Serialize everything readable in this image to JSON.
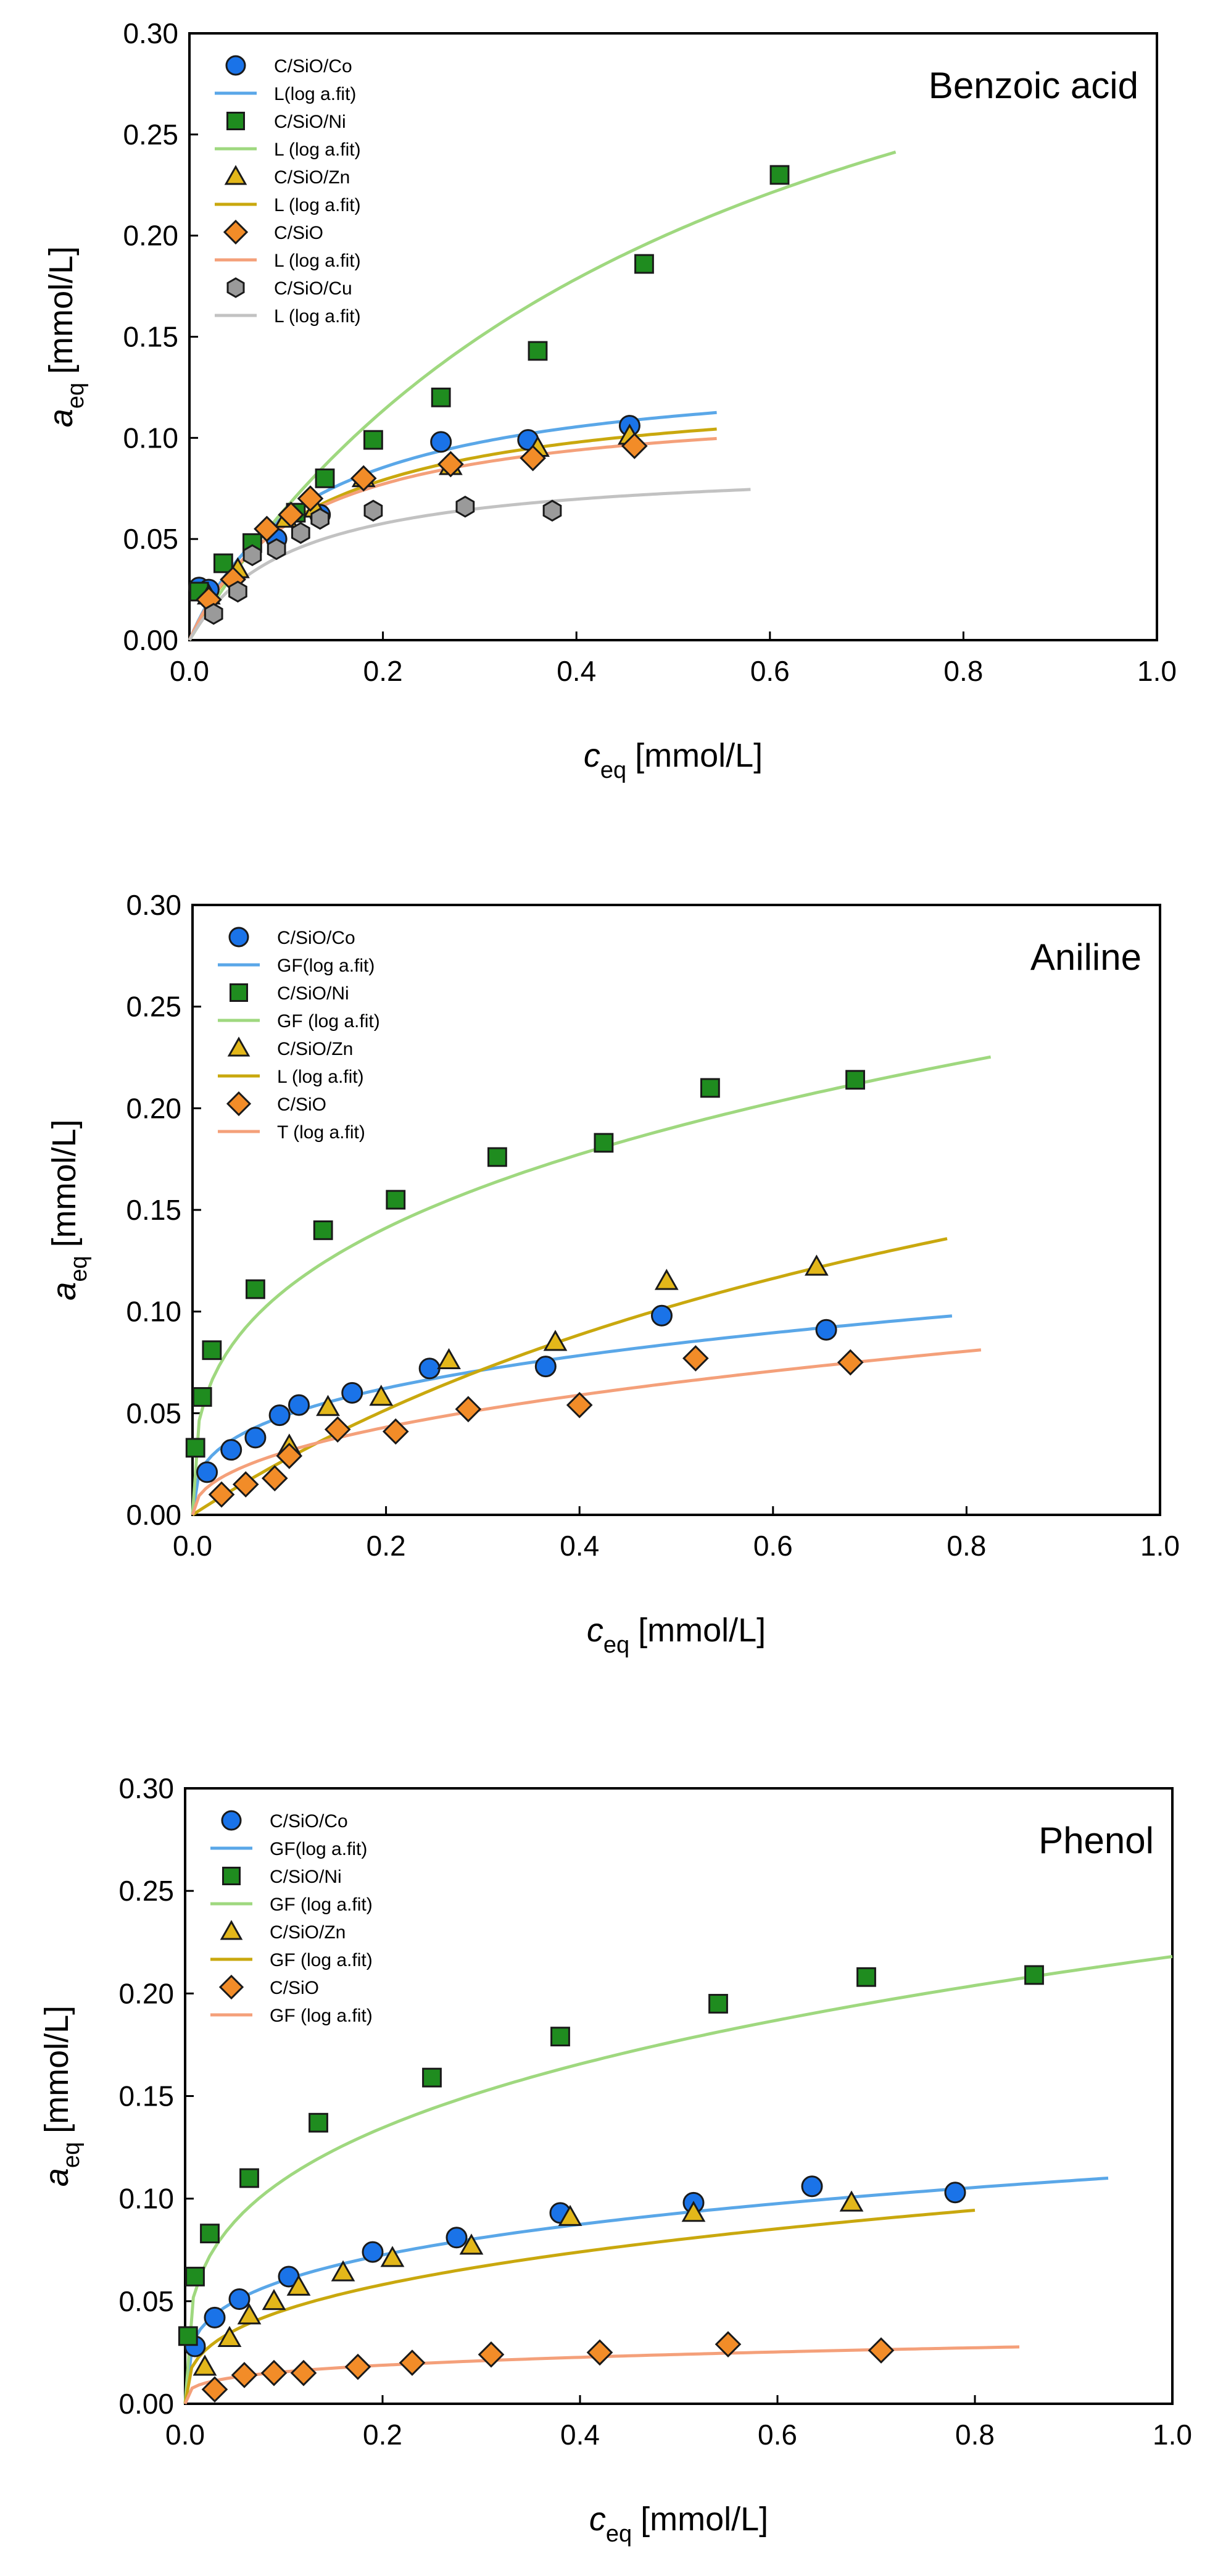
{
  "chart_data": [
    {
      "type": "scatter",
      "title": "Benzoic acid",
      "xlabel": {
        "main": "c",
        "sub": "eq",
        "units": "[mmol/L]"
      },
      "ylabel": {
        "main": "a",
        "sub": "eq",
        "units": "[mmol/L]"
      },
      "xlim": [
        0,
        1.0
      ],
      "ylim": [
        0,
        0.3
      ],
      "xticks": [
        "0.0",
        "0.2",
        "0.4",
        "0.6",
        "0.8",
        "1.0"
      ],
      "yticks": [
        "0.00",
        "0.05",
        "0.10",
        "0.15",
        "0.20",
        "0.25",
        "0.30"
      ],
      "grid": false,
      "legend_position": "top-left",
      "series": [
        {
          "name": "C/SiO/Co",
          "marker": "circle",
          "color": "#1a73e8",
          "x": [
            0.01,
            0.02,
            0.09,
            0.135,
            0.26,
            0.35,
            0.455
          ],
          "y": [
            0.026,
            0.025,
            0.05,
            0.062,
            0.098,
            0.099,
            0.106
          ]
        },
        {
          "name": "L(log a.fit)",
          "kind": "fit",
          "color": "#5aa7e8",
          "model": "langmuir",
          "qmax": 0.138,
          "K": 8.1,
          "xmax": 0.545
        },
        {
          "name": "C/SiO/Ni",
          "marker": "square",
          "color": "#1f8c1f",
          "x": [
            0.01,
            0.035,
            0.065,
            0.11,
            0.14,
            0.19,
            0.26,
            0.36,
            0.47,
            0.61
          ],
          "y": [
            0.024,
            0.038,
            0.048,
            0.063,
            0.08,
            0.099,
            0.12,
            0.143,
            0.186,
            0.23
          ]
        },
        {
          "name": "L (log a.fit)",
          "kind": "fit",
          "color": "#9fd87f",
          "model": "langmuir",
          "qmax": 0.42,
          "K": 1.85,
          "xmax": 0.73
        },
        {
          "name": "C/SiO/Zn",
          "marker": "triangle",
          "color": "#e3b71a",
          "x": [
            0.02,
            0.05,
            0.1,
            0.13,
            0.18,
            0.27,
            0.36,
            0.455
          ],
          "y": [
            0.022,
            0.035,
            0.06,
            0.065,
            0.08,
            0.086,
            0.095,
            0.101
          ]
        },
        {
          "name": "L (log a.fit)",
          "kind": "fit",
          "color": "#c9a80e",
          "model": "langmuir",
          "qmax": 0.128,
          "K": 8.1,
          "xmax": 0.545
        },
        {
          "name": "C/SiO",
          "marker": "diamond",
          "color": "#f28c28",
          "x": [
            0.02,
            0.045,
            0.08,
            0.105,
            0.125,
            0.18,
            0.27,
            0.355,
            0.46
          ],
          "y": [
            0.02,
            0.03,
            0.055,
            0.062,
            0.07,
            0.08,
            0.087,
            0.09,
            0.096
          ]
        },
        {
          "name": "L (log a.fit)",
          "kind": "fit",
          "color": "#f4a07a",
          "model": "langmuir",
          "qmax": 0.12,
          "K": 9.0,
          "xmax": 0.545
        },
        {
          "name": "C/SiO/Cu",
          "marker": "hexagon",
          "color": "#9a9a9a",
          "x": [
            0.025,
            0.05,
            0.065,
            0.09,
            0.115,
            0.135,
            0.19,
            0.285,
            0.375
          ],
          "y": [
            0.013,
            0.024,
            0.042,
            0.045,
            0.053,
            0.06,
            0.064,
            0.066,
            0.064
          ]
        },
        {
          "name": "L (log a.fit)",
          "kind": "fit",
          "color": "#c2c2c2",
          "model": "langmuir",
          "qmax": 0.088,
          "K": 9.5,
          "xmax": 0.58
        }
      ]
    },
    {
      "type": "scatter",
      "title": "Aniline",
      "xlabel": {
        "main": "c",
        "sub": "eq",
        "units": "[mmol/L]"
      },
      "ylabel": {
        "main": "a",
        "sub": "eq",
        "units": "[mmol/L]"
      },
      "xlim": [
        0,
        1.0
      ],
      "ylim": [
        0,
        0.3
      ],
      "xticks": [
        "0.0",
        "0.2",
        "0.4",
        "0.6",
        "0.8",
        "1.0"
      ],
      "yticks": [
        "0.00",
        "0.05",
        "0.10",
        "0.15",
        "0.20",
        "0.25",
        "0.30"
      ],
      "grid": false,
      "legend_position": "top-left",
      "series": [
        {
          "name": "C/SiO/Co",
          "marker": "circle",
          "color": "#1a73e8",
          "x": [
            0.015,
            0.04,
            0.065,
            0.09,
            0.11,
            0.165,
            0.245,
            0.365,
            0.485,
            0.655
          ],
          "y": [
            0.021,
            0.032,
            0.038,
            0.049,
            0.054,
            0.06,
            0.072,
            0.073,
            0.098,
            0.091
          ]
        },
        {
          "name": "GF(log a.fit)",
          "kind": "fit",
          "color": "#5aa7e8",
          "model": "freundlich",
          "K": 0.106,
          "n": 0.33,
          "xmax": 0.785
        },
        {
          "name": "C/SiO/Ni",
          "marker": "square",
          "color": "#1f8c1f",
          "x": [
            0.003,
            0.01,
            0.02,
            0.065,
            0.135,
            0.21,
            0.315,
            0.425,
            0.535,
            0.685
          ],
          "y": [
            0.033,
            0.058,
            0.081,
            0.111,
            0.14,
            0.155,
            0.176,
            0.183,
            0.21,
            0.214
          ]
        },
        {
          "name": "GF (log a.fit)",
          "kind": "fit",
          "color": "#9fd87f",
          "model": "freundlich",
          "K": 0.24,
          "n": 0.33,
          "xmax": 0.825
        },
        {
          "name": "C/SiO/Zn",
          "marker": "triangle",
          "color": "#e3b71a",
          "x": [
            0.1,
            0.14,
            0.195,
            0.265,
            0.375,
            0.49,
            0.645
          ],
          "y": [
            0.034,
            0.053,
            0.058,
            0.076,
            0.085,
            0.115,
            0.122
          ]
        },
        {
          "name": "L (log a.fit)",
          "kind": "fit",
          "color": "#c9a80e",
          "model": "langmuir",
          "qmax": 0.31,
          "K": 1.0,
          "xmax": 0.78
        },
        {
          "name": "C/SiO",
          "marker": "diamond",
          "color": "#f28c28",
          "x": [
            0.03,
            0.055,
            0.085,
            0.1,
            0.15,
            0.21,
            0.285,
            0.4,
            0.52,
            0.68
          ],
          "y": [
            0.01,
            0.015,
            0.018,
            0.029,
            0.042,
            0.041,
            0.052,
            0.054,
            0.077,
            0.075
          ]
        },
        {
          "name": "T (log a.fit)",
          "kind": "fit",
          "color": "#f4a07a",
          "model": "freundlich",
          "K": 0.089,
          "n": 0.45,
          "xmax": 0.815
        }
      ]
    },
    {
      "type": "scatter",
      "title": "Phenol",
      "xlabel": {
        "main": "c",
        "sub": "eq",
        "units": "[mmol/L]"
      },
      "ylabel": {
        "main": "a",
        "sub": "eq",
        "units": "[mmol/L]"
      },
      "xlim": [
        0,
        1.0
      ],
      "ylim": [
        0,
        0.3
      ],
      "xticks": [
        "0.0",
        "0.2",
        "0.4",
        "0.6",
        "0.8",
        "1.0"
      ],
      "yticks": [
        "0.00",
        "0.05",
        "0.10",
        "0.15",
        "0.20",
        "0.25",
        "0.30"
      ],
      "grid": false,
      "legend_position": "top-left",
      "series": [
        {
          "name": "C/SiO/Co",
          "marker": "circle",
          "color": "#1a73e8",
          "x": [
            0.01,
            0.03,
            0.055,
            0.105,
            0.19,
            0.275,
            0.38,
            0.515,
            0.635,
            0.78
          ],
          "y": [
            0.028,
            0.042,
            0.051,
            0.062,
            0.074,
            0.081,
            0.093,
            0.098,
            0.106,
            0.103
          ]
        },
        {
          "name": "GF(log a.fit)",
          "kind": "fit",
          "color": "#5aa7e8",
          "model": "freundlich",
          "K": 0.112,
          "n": 0.27,
          "xmax": 0.935
        },
        {
          "name": "C/SiO/Ni",
          "marker": "square",
          "color": "#1f8c1f",
          "x": [
            0.003,
            0.01,
            0.025,
            0.065,
            0.135,
            0.25,
            0.38,
            0.54,
            0.69,
            0.86
          ],
          "y": [
            0.033,
            0.062,
            0.083,
            0.11,
            0.137,
            0.159,
            0.179,
            0.195,
            0.208,
            0.209
          ]
        },
        {
          "name": "GF (log a.fit)",
          "kind": "fit",
          "color": "#9fd87f",
          "model": "freundlich",
          "K": 0.218,
          "n": 0.3,
          "xmax": 1.0
        },
        {
          "name": "C/SiO/Zn",
          "marker": "triangle",
          "color": "#e3b71a",
          "x": [
            0.02,
            0.045,
            0.065,
            0.09,
            0.115,
            0.16,
            0.21,
            0.29,
            0.39,
            0.515,
            0.675
          ],
          "y": [
            0.018,
            0.032,
            0.043,
            0.05,
            0.057,
            0.064,
            0.071,
            0.077,
            0.091,
            0.093,
            0.098
          ]
        },
        {
          "name": "GF (log a.fit)",
          "kind": "fit",
          "color": "#c9a80e",
          "model": "freundlich",
          "K": 0.102,
          "n": 0.35,
          "xmax": 0.8
        },
        {
          "name": "C/SiO",
          "marker": "diamond",
          "color": "#f28c28",
          "x": [
            0.03,
            0.06,
            0.09,
            0.12,
            0.175,
            0.23,
            0.31,
            0.42,
            0.55,
            0.705
          ],
          "y": [
            0.007,
            0.014,
            0.015,
            0.015,
            0.018,
            0.02,
            0.024,
            0.025,
            0.029,
            0.026
          ]
        },
        {
          "name": "GF (log a.fit)",
          "kind": "fit",
          "color": "#f4a07a",
          "model": "freundlich",
          "K": 0.029,
          "n": 0.27,
          "xmax": 0.845
        }
      ]
    }
  ]
}
